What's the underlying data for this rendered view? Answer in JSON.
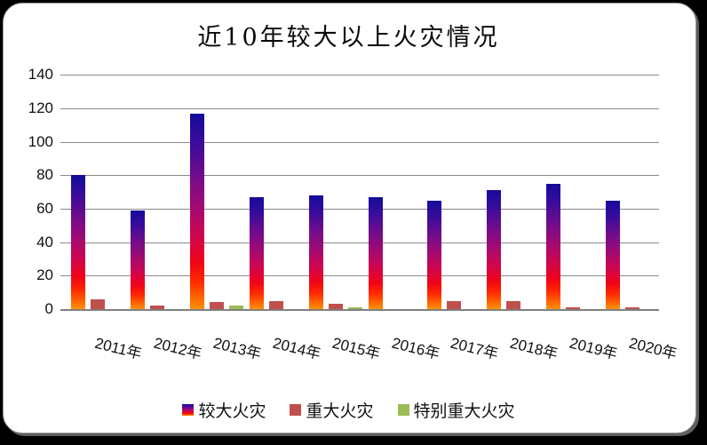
{
  "chart_data": {
    "type": "bar",
    "title": "近10年较大以上火灾情况",
    "categories": [
      "2011年",
      "2012年",
      "2013年",
      "2014年",
      "2015年",
      "2016年",
      "2017年",
      "2018年",
      "2019年",
      "2020年"
    ],
    "series": [
      {
        "name": "较大火灾",
        "values": [
          80,
          59,
          117,
          67,
          68,
          67,
          65,
          71,
          75,
          65
        ]
      },
      {
        "name": "重大火灾",
        "values": [
          6,
          2,
          4,
          5,
          3,
          0,
          5,
          5,
          1,
          1
        ]
      },
      {
        "name": "特别重大火灾",
        "values": [
          0,
          0,
          2,
          0,
          1,
          0,
          0,
          0,
          0,
          0
        ]
      }
    ],
    "xlabel": "",
    "ylabel": "",
    "ylim": [
      0,
      140
    ],
    "yticks": [
      0,
      20,
      40,
      60,
      80,
      100,
      120,
      140
    ],
    "grid": true,
    "legend_position": "bottom"
  },
  "colors": {
    "bar_gradient_top": "#140b9c",
    "bar_gradient_middle": "#cd0650",
    "bar_gradient_bottom": "#ff9100",
    "serious_fire_fill": "#c0504d",
    "extra_serious_fire_fill": "#9bbb59",
    "gridline": "#8a8a8a",
    "background": "#000000",
    "card_background": "#ffffff"
  }
}
